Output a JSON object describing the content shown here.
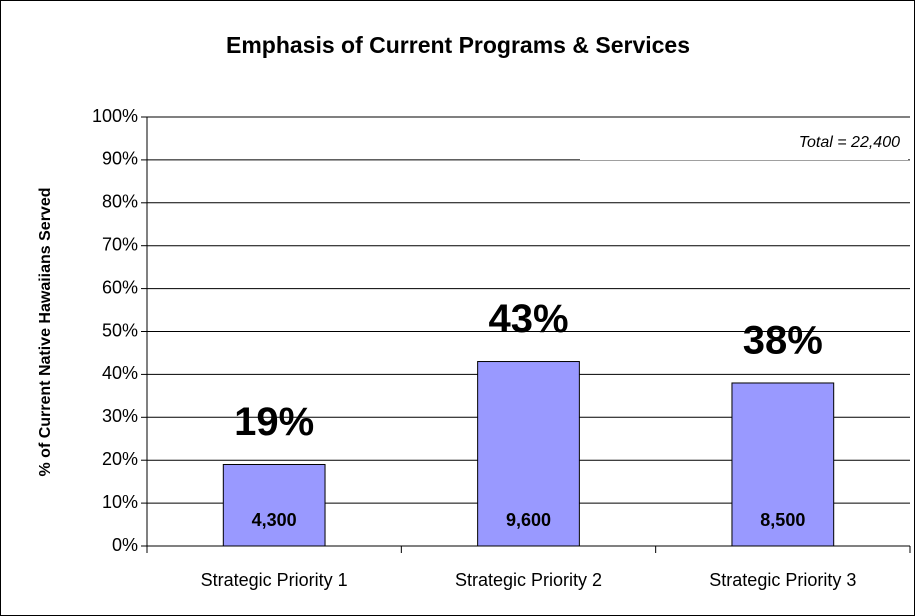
{
  "chart_data": {
    "type": "bar",
    "title": "Emphasis of Current Programs & Services",
    "y_axis_label": "% of Current Native Hawaiians Served",
    "annotation": "Total = 22,400",
    "categories": [
      "Strategic Priority 1",
      "Strategic Priority 2",
      "Strategic Priority 3"
    ],
    "values": [
      19,
      43,
      38
    ],
    "value_labels": [
      "19%",
      "43%",
      "38%"
    ],
    "count_labels": [
      "4,300",
      "9,600",
      "8,500"
    ],
    "color": "#9999ff",
    "ylim": [
      0,
      100
    ],
    "yticks": [
      {
        "value": 0,
        "label": "0%"
      },
      {
        "value": 10,
        "label": "10%"
      },
      {
        "value": 20,
        "label": "20%"
      },
      {
        "value": 30,
        "label": "30%"
      },
      {
        "value": 40,
        "label": "40%"
      },
      {
        "value": 50,
        "label": "50%"
      },
      {
        "value": 60,
        "label": "60%"
      },
      {
        "value": 70,
        "label": "70%"
      },
      {
        "value": 80,
        "label": "80%"
      },
      {
        "value": 90,
        "label": "90%"
      },
      {
        "value": 100,
        "label": "100%"
      }
    ],
    "grid": true
  }
}
